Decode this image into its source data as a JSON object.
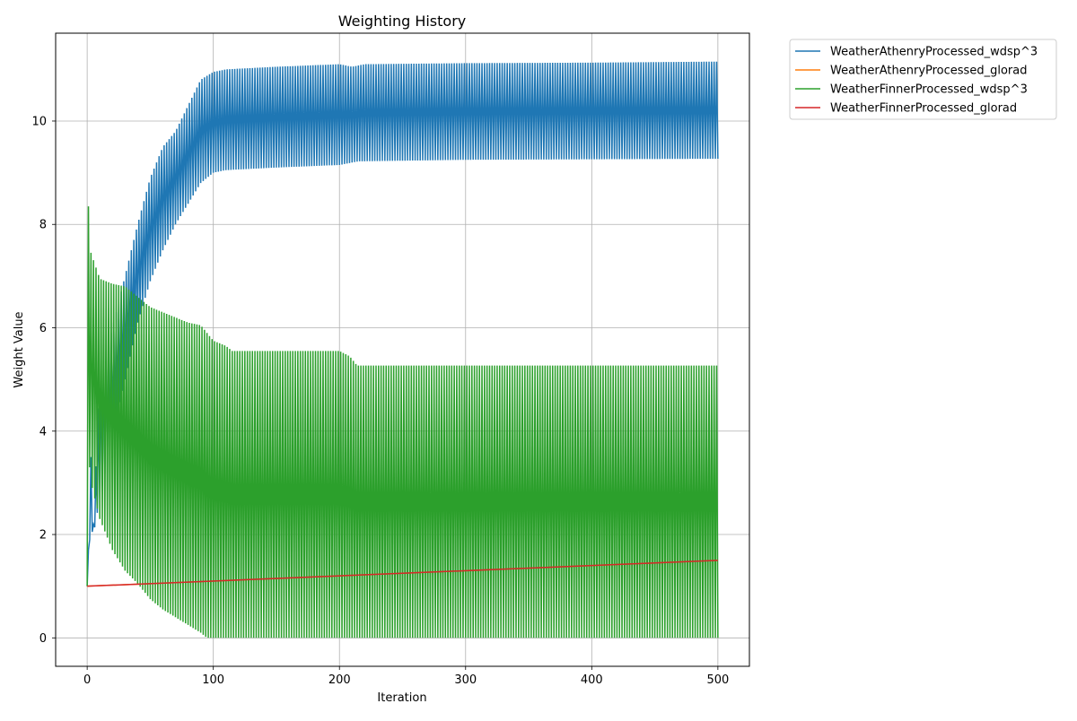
{
  "chart_data": {
    "type": "line",
    "title": "Weighting History",
    "xlabel": "Iteration",
    "ylabel": "Weight Value",
    "xlim": [
      -25,
      525
    ],
    "ylim": [
      -0.55,
      11.7
    ],
    "xticks": [
      0,
      100,
      200,
      300,
      400,
      500
    ],
    "yticks": [
      0,
      2,
      4,
      6,
      8,
      10
    ],
    "grid": true,
    "legend_position": "outside-top-right",
    "series": [
      {
        "name": "WeatherAthenryProcessed_wdsp^3",
        "color": "#1f77b4",
        "pattern": "alternating-envelope",
        "start": 1.0,
        "upper": [
          [
            1,
            1.7
          ],
          [
            3,
            3.5
          ],
          [
            5,
            2.2
          ],
          [
            10,
            5.0
          ],
          [
            20,
            6.0
          ],
          [
            30,
            7.0
          ],
          [
            40,
            8.0
          ],
          [
            50,
            8.9
          ],
          [
            60,
            9.5
          ],
          [
            70,
            9.8
          ],
          [
            80,
            10.3
          ],
          [
            90,
            10.8
          ],
          [
            100,
            10.95
          ],
          [
            110,
            11.0
          ],
          [
            150,
            11.05
          ],
          [
            200,
            11.1
          ],
          [
            210,
            11.05
          ],
          [
            220,
            11.1
          ],
          [
            300,
            11.12
          ],
          [
            400,
            11.13
          ],
          [
            500,
            11.15
          ]
        ],
        "lower": [
          [
            1,
            1.7
          ],
          [
            3,
            2.1
          ],
          [
            5,
            2.0
          ],
          [
            10,
            2.7
          ],
          [
            20,
            3.9
          ],
          [
            30,
            5.0
          ],
          [
            40,
            6.1
          ],
          [
            50,
            6.9
          ],
          [
            60,
            7.5
          ],
          [
            70,
            8.0
          ],
          [
            80,
            8.4
          ],
          [
            90,
            8.8
          ],
          [
            100,
            9.0
          ],
          [
            110,
            9.05
          ],
          [
            150,
            9.1
          ],
          [
            200,
            9.15
          ],
          [
            215,
            9.22
          ],
          [
            300,
            9.25
          ],
          [
            400,
            9.26
          ],
          [
            500,
            9.27
          ]
        ]
      },
      {
        "name": "WeatherAthenryProcessed_glorad",
        "color": "#ff7f0e",
        "pattern": "linear",
        "points": [
          [
            0,
            1.0
          ],
          [
            500,
            1.5
          ]
        ]
      },
      {
        "name": "WeatherFinnerProcessed_wdsp^3",
        "color": "#2ca02c",
        "pattern": "alternating-envelope",
        "start": 1.0,
        "upper": [
          [
            1,
            8.35
          ],
          [
            3,
            7.45
          ],
          [
            10,
            6.95
          ],
          [
            20,
            6.85
          ],
          [
            30,
            6.8
          ],
          [
            40,
            6.6
          ],
          [
            50,
            6.4
          ],
          [
            60,
            6.3
          ],
          [
            70,
            6.2
          ],
          [
            80,
            6.1
          ],
          [
            90,
            6.05
          ],
          [
            100,
            5.75
          ],
          [
            110,
            5.65
          ],
          [
            115,
            5.55
          ],
          [
            200,
            5.55
          ],
          [
            208,
            5.45
          ],
          [
            214,
            5.27
          ],
          [
            300,
            5.27
          ],
          [
            400,
            5.27
          ],
          [
            500,
            5.27
          ]
        ],
        "lower": [
          [
            1,
            3.6
          ],
          [
            3,
            3.0
          ],
          [
            10,
            2.3
          ],
          [
            20,
            1.7
          ],
          [
            30,
            1.3
          ],
          [
            40,
            1.05
          ],
          [
            50,
            0.75
          ],
          [
            60,
            0.55
          ],
          [
            70,
            0.4
          ],
          [
            80,
            0.25
          ],
          [
            90,
            0.1
          ],
          [
            95,
            0.0
          ],
          [
            500,
            0.0
          ]
        ]
      },
      {
        "name": "WeatherFinnerProcessed_glorad",
        "color": "#d62728",
        "pattern": "linear",
        "points": [
          [
            0,
            1.0
          ],
          [
            500,
            1.5
          ]
        ]
      }
    ]
  }
}
